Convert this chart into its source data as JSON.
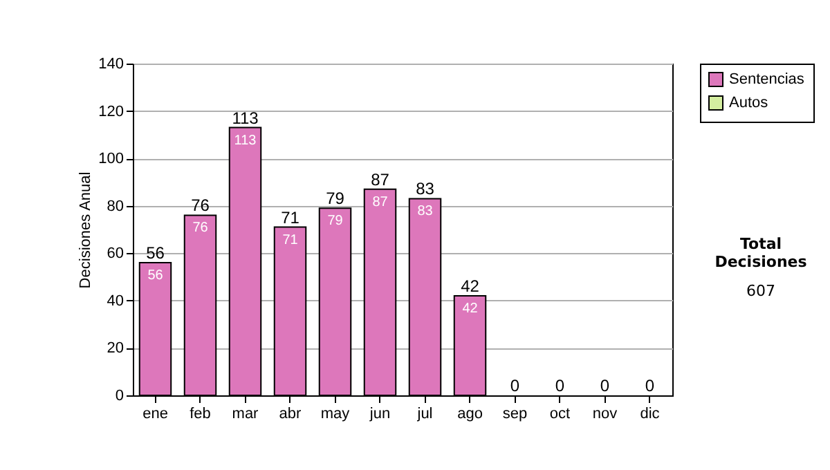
{
  "chart_data": {
    "type": "bar",
    "ylabel": "Decisiones Anual",
    "categories": [
      "ene",
      "feb",
      "mar",
      "abr",
      "may",
      "jun",
      "jul",
      "ago",
      "sep",
      "oct",
      "nov",
      "dic"
    ],
    "series": [
      {
        "name": "Sentencias",
        "color": "#dd77bb",
        "values": [
          56,
          76,
          113,
          71,
          79,
          87,
          83,
          42,
          0,
          0,
          0,
          0
        ],
        "value_labels": [
          "56",
          "76",
          "113",
          "71",
          "79",
          "87",
          "83",
          "42",
          null,
          null,
          null,
          null
        ]
      },
      {
        "name": "Autos",
        "color": "#d4eea0",
        "values": [
          0,
          0,
          0,
          0,
          0,
          0,
          0,
          0,
          0,
          0,
          0,
          0
        ]
      }
    ],
    "stacked": true,
    "totals": [
      "56",
      "76",
      "113",
      "71",
      "79",
      "87",
      "83",
      "42",
      "0",
      "0",
      "0",
      "0"
    ],
    "ylim": [
      0,
      140
    ],
    "yticks": [
      0,
      20,
      40,
      60,
      80,
      100,
      120,
      140
    ],
    "grid": "y",
    "legend": "right",
    "annotations": [
      "Total Decisiones",
      "607"
    ]
  }
}
